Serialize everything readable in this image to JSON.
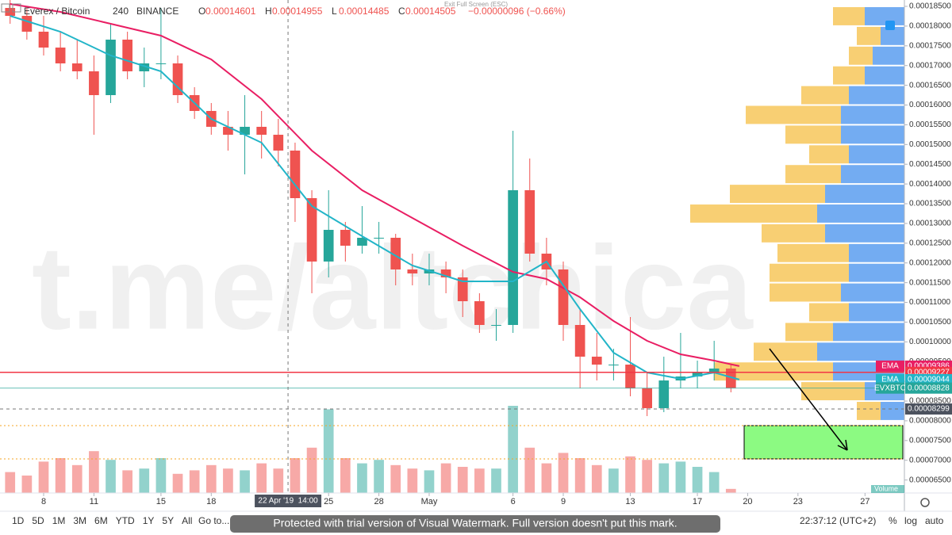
{
  "chart_data": {
    "type": "candlestick",
    "top_notice": "Exit Full Screen (ESC)",
    "symbol": "Everex / Bitcoin",
    "interval": "240",
    "exchange": "BINANCE",
    "ohlc_header": [
      {
        "label": "O",
        "text": "0.00014601"
      },
      {
        "label": "H",
        "text": "0.00014955"
      },
      {
        "label": "L",
        "text": "0.00014485"
      },
      {
        "label": "C",
        "text": "0.00014505"
      }
    ],
    "change": "−0.00000096 (−0.66%)",
    "watermark": "t.me/altchica",
    "x": [
      -2,
      -1,
      0,
      1,
      2,
      3,
      4,
      5,
      6,
      7,
      8,
      9,
      10,
      11,
      12,
      13,
      14,
      15,
      16,
      17,
      18,
      19,
      20,
      21,
      22,
      23,
      24,
      25,
      26,
      27,
      28,
      29,
      30,
      31,
      32,
      33,
      34,
      35,
      36,
      37,
      38,
      39,
      40,
      41
    ],
    "open": [
      0.0001846,
      0.00018259,
      0.00017858,
      0.00017456,
      0.00017055,
      0.00016854,
      0.00016251,
      0.00017657,
      0.00016854,
      0.00017055,
      0.00017055,
      0.00016251,
      0.0001585,
      0.00015448,
      0.00015247,
      0.00015448,
      0.00015247,
      0.00014846,
      0.00013641,
      0.00012035,
      0.00012838,
      0.00012436,
      0.00012637,
      0.00012637,
      0.00011834,
      0.00011733,
      0.00011834,
      0.00011633,
      0.0001103,
      0.00010428,
      0.00010428,
      0.00013842,
      0.00012235,
      0.00011834,
      0.00010428,
      9.625e-05,
      9.424e-05,
      9.424e-05,
      8.822e-05,
      8.32e-05,
      9.022e-05,
      9.123e-05,
      9.223e-05,
      9.324e-05
    ],
    "high": [
      0.00018661,
      0.0001846,
      0.00018259,
      0.00017858,
      0.00017657,
      0.00017255,
      0.00018059,
      0.00017858,
      0.00017456,
      0.0001846,
      0.00017255,
      0.00016452,
      0.00016051,
      0.0001585,
      0.00016251,
      0.0001585,
      0.00015649,
      0.00015047,
      0.00013842,
      0.00013842,
      0.00013039,
      0.0001344,
      0.00013039,
      0.00012737,
      0.00012235,
      0.00012235,
      0.00012035,
      0.00011834,
      0.00011231,
      0.0001083,
      0.00015348,
      0.00014645,
      0.00012637,
      0.00012035,
      0.0001083,
      0.00010227,
      9.826e-05,
      0.00010629,
      9.223e-05,
      9.625e-05,
      0.00010227,
      9.525e-05,
      0.00010027,
      9.424e-05
    ],
    "low": [
      0.00018059,
      0.00017657,
      0.00017255,
      0.00016854,
      0.00016653,
      0.00015247,
      0.00016051,
      0.00016653,
      0.00016452,
      0.00016653,
      0.00016051,
      0.00015649,
      0.00015247,
      0.00014846,
      0.00014243,
      0.00014645,
      0.00014444,
      0.00013039,
      0.00011231,
      0.00011633,
      0.00012035,
      0.00012235,
      0.00012235,
      0.00011432,
      0.00011432,
      0.00011432,
      0.00011231,
      0.00010629,
      0.00010227,
      0.00010027,
      0.00010227,
      0.00012035,
      0.00011432,
      0.00010027,
      8.822e-05,
      9.022e-05,
      9.022e-05,
      8.621e-05,
      8.119e-05,
      8.219e-05,
      8.822e-05,
      8.822e-05,
      9.022e-05,
      8.721e-05
    ],
    "close": [
      0.00018259,
      0.00017858,
      0.00017456,
      0.00017055,
      0.00016854,
      0.00016251,
      0.00017657,
      0.00016854,
      0.00017055,
      0.00017055,
      0.00016251,
      0.0001585,
      0.00015448,
      0.00015247,
      0.00015448,
      0.00015247,
      0.00014846,
      0.00013641,
      0.00012035,
      0.00012838,
      0.00012436,
      0.00012637,
      0.00012637,
      0.00011834,
      0.00011733,
      0.00011834,
      0.00011633,
      0.0001103,
      0.00010428,
      0.00010428,
      0.00013842,
      0.00012235,
      0.00011834,
      0.00010428,
      9.625e-05,
      9.424e-05,
      9.424e-05,
      8.822e-05,
      8.32e-05,
      9.022e-05,
      9.123e-05,
      9.223e-05,
      9.324e-05,
      8.828e-05
    ],
    "up_color": "#26a69a",
    "down_color": "#ef5350",
    "volume": {
      "name": "Volume",
      "values": [
        60000,
        50000,
        90000,
        100000,
        80000,
        120000,
        95000,
        65000,
        70000,
        100000,
        55000,
        65000,
        80000,
        70000,
        65000,
        85000,
        70000,
        100000,
        130000,
        240000,
        100000,
        85000,
        95000,
        80000,
        70000,
        65000,
        85000,
        75000,
        70000,
        70000,
        250000,
        130000,
        85000,
        115000,
        100000,
        80000,
        70000,
        105000,
        95000,
        85000,
        90000,
        75000,
        60000,
        11747
      ],
      "value_labels": [
        null,
        null,
        null,
        null,
        null,
        null,
        null,
        null,
        null,
        null,
        null,
        null,
        null,
        null,
        null,
        null,
        null,
        null,
        null,
        null,
        null,
        null,
        null,
        null,
        null,
        null,
        null,
        null,
        null,
        null,
        null,
        null,
        null,
        null,
        null,
        null,
        null,
        null,
        null,
        null,
        null,
        null,
        null,
        "11.747K"
      ]
    },
    "ema_x": [
      -2,
      1,
      4,
      7,
      10,
      13,
      16,
      19,
      22,
      25,
      28,
      30,
      32,
      34,
      36,
      38,
      40,
      41.5
    ],
    "ema": [
      {
        "name": "EMA",
        "color": "#e91e63",
        "values": [
          0.00018561,
          0.0001836,
          0.00018059,
          0.00017757,
          0.00017155,
          0.00016151,
          0.00014846,
          0.00013842,
          0.00013139,
          0.00012436,
          0.00011774,
          0.00011593,
          0.00011131,
          0.00010529,
          0.00010027,
          9.685e-05,
          9.525e-05,
          9.386e-05
        ]
      },
      {
        "name": "EMA",
        "color": "#22b5c8",
        "values": [
          0.00018259,
          0.00017858,
          0.00017255,
          0.00016854,
          0.00015649,
          0.00015047,
          0.0001344,
          0.00012677,
          0.00011934,
          0.00011533,
          0.00011533,
          0.00012035,
          0.0001083,
          9.725e-05,
          9.223e-05,
          9.063e-05,
          9.223e-05,
          9.044e-05
        ]
      }
    ],
    "horizontal_line": {
      "value": 9.227e-05,
      "color": "#f23645"
    },
    "last_price_tag": "EVXBTC",
    "crosshair": {
      "x": 14.58,
      "x_label": "22 Apr '19  14:00",
      "y": 8.299e-05
    },
    "target_zone": {
      "low": 7.035e-05,
      "high": 7.878e-05,
      "color": "#8cfa82"
    },
    "volume_profile": {
      "bins": [
        8e-05,
        8.5e-05,
        9e-05,
        9.5e-05,
        0.0001,
        0.000105,
        0.00011,
        0.000115,
        0.00012,
        0.000125,
        0.00013,
        0.000135,
        0.00014,
        0.000145,
        0.00015,
        0.000155,
        0.00016,
        0.000165,
        0.00017,
        0.000175,
        0.00018,
        0.000185
      ],
      "up": [
        30,
        50,
        90,
        110,
        90,
        70,
        80,
        70,
        70,
        100,
        110,
        100,
        80,
        70,
        80,
        80,
        70,
        50,
        40,
        30,
        50
      ],
      "down": [
        30,
        80,
        150,
        80,
        60,
        50,
        90,
        100,
        90,
        80,
        160,
        120,
        70,
        50,
        70,
        120,
        60,
        40,
        30,
        30,
        40
      ],
      "up_color": "#5b9df0",
      "down_color": "#f7c75a"
    },
    "xlim": [
      -2.603,
      51.35
    ],
    "xticks": [
      {
        "value": 0,
        "label": "8"
      },
      {
        "value": 3,
        "label": "11"
      },
      {
        "value": 7,
        "label": "15"
      },
      {
        "value": 10,
        "label": "18"
      },
      {
        "value": 17,
        "label": "25"
      },
      {
        "value": 20,
        "label": "28"
      },
      {
        "value": 23,
        "label": "May"
      },
      {
        "value": 28,
        "label": "6"
      },
      {
        "value": 31,
        "label": "9"
      },
      {
        "value": 35,
        "label": "13"
      },
      {
        "value": 39,
        "label": "17"
      },
      {
        "value": 42,
        "label": "20"
      },
      {
        "value": 45,
        "label": "23"
      },
      {
        "value": 49,
        "label": "27"
      }
    ],
    "ylim": [
      6.171e-05,
      0.00018661
    ],
    "yticks": [
      {
        "value": 6.5e-05,
        "label": "0.00006500"
      },
      {
        "value": 7e-05,
        "label": "0.00007000"
      },
      {
        "value": 7.5e-05,
        "label": "0.00007500"
      },
      {
        "value": 8e-05,
        "label": "0.00008000"
      },
      {
        "value": 8.5e-05,
        "label": "0.00008500"
      },
      {
        "value": 9e-05,
        "label": "0.00009000"
      },
      {
        "value": 9.5e-05,
        "label": "0.00009500"
      },
      {
        "value": 0.0001,
        "label": "0.00010000"
      },
      {
        "value": 0.000105,
        "label": "0.00010500"
      },
      {
        "value": 0.00011,
        "label": "0.00011000"
      },
      {
        "value": 0.000115,
        "label": "0.00011500"
      },
      {
        "value": 0.00012,
        "label": "0.00012000"
      },
      {
        "value": 0.000125,
        "label": "0.00012500"
      },
      {
        "value": 0.00013,
        "label": "0.00013000"
      },
      {
        "value": 0.000135,
        "label": "0.00013500"
      },
      {
        "value": 0.00014,
        "label": "0.00014000"
      },
      {
        "value": 0.000145,
        "label": "0.00014500"
      },
      {
        "value": 0.00015,
        "label": "0.00015000"
      },
      {
        "value": 0.000155,
        "label": "0.00015500"
      },
      {
        "value": 0.00016,
        "label": "0.00016000"
      },
      {
        "value": 0.000165,
        "label": "0.00016500"
      },
      {
        "value": 0.00017,
        "label": "0.00017000"
      },
      {
        "value": 0.000175,
        "label": "0.00017500"
      },
      {
        "value": 0.00018,
        "label": "0.00018000"
      },
      {
        "value": 0.000185,
        "label": "0.00018500"
      }
    ],
    "grid": false,
    "toolbar": {
      "ranges": [
        "1D",
        "5D",
        "1M",
        "3M",
        "6M",
        "YTD",
        "1Y",
        "5Y",
        "All"
      ],
      "goto": "Go to...",
      "banner": "Protected with trial version of Visual Watermark. Full version doesn't put this mark.",
      "clock": "22:37:12 (UTC+2)",
      "options": [
        "%",
        "log",
        "auto"
      ]
    }
  }
}
